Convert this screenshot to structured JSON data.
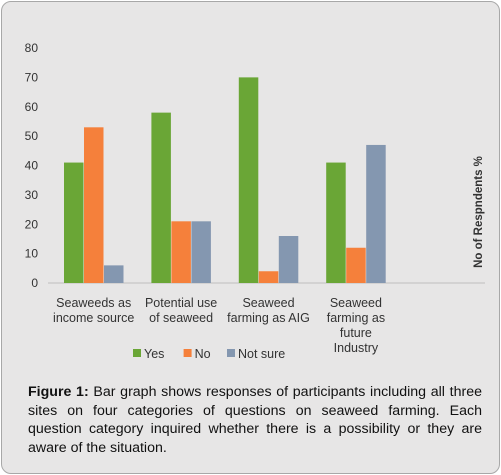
{
  "chart_data": {
    "type": "bar",
    "categories": [
      [
        "Seaweeds as",
        "income source"
      ],
      [
        "Potential use",
        "of seaweed"
      ],
      [
        "Seaweed",
        "farming as AIG"
      ],
      [
        "Seaweed",
        "farming as",
        "future",
        "Industry"
      ]
    ],
    "series": [
      {
        "name": "Yes",
        "color": "#6aa636",
        "values": [
          41,
          58,
          70,
          41
        ]
      },
      {
        "name": "No",
        "color": "#f5803b",
        "values": [
          53,
          21,
          4,
          12
        ]
      },
      {
        "name": "Not sure",
        "color": "#8497b0",
        "values": [
          6,
          21,
          16,
          47
        ]
      }
    ],
    "ylabel": "No of Respndents %",
    "ylim": [
      0,
      80
    ],
    "yticks": [
      0,
      10,
      20,
      30,
      40,
      50,
      60,
      70,
      80
    ],
    "grid": false,
    "legend_position": "bottom"
  },
  "caption": {
    "label": "Figure 1:",
    "text": " Bar graph shows responses of participants including all three sites on four categories of questions on seaweed farming. Each question category inquired whether there is a possibility or they are aware of the situation."
  }
}
